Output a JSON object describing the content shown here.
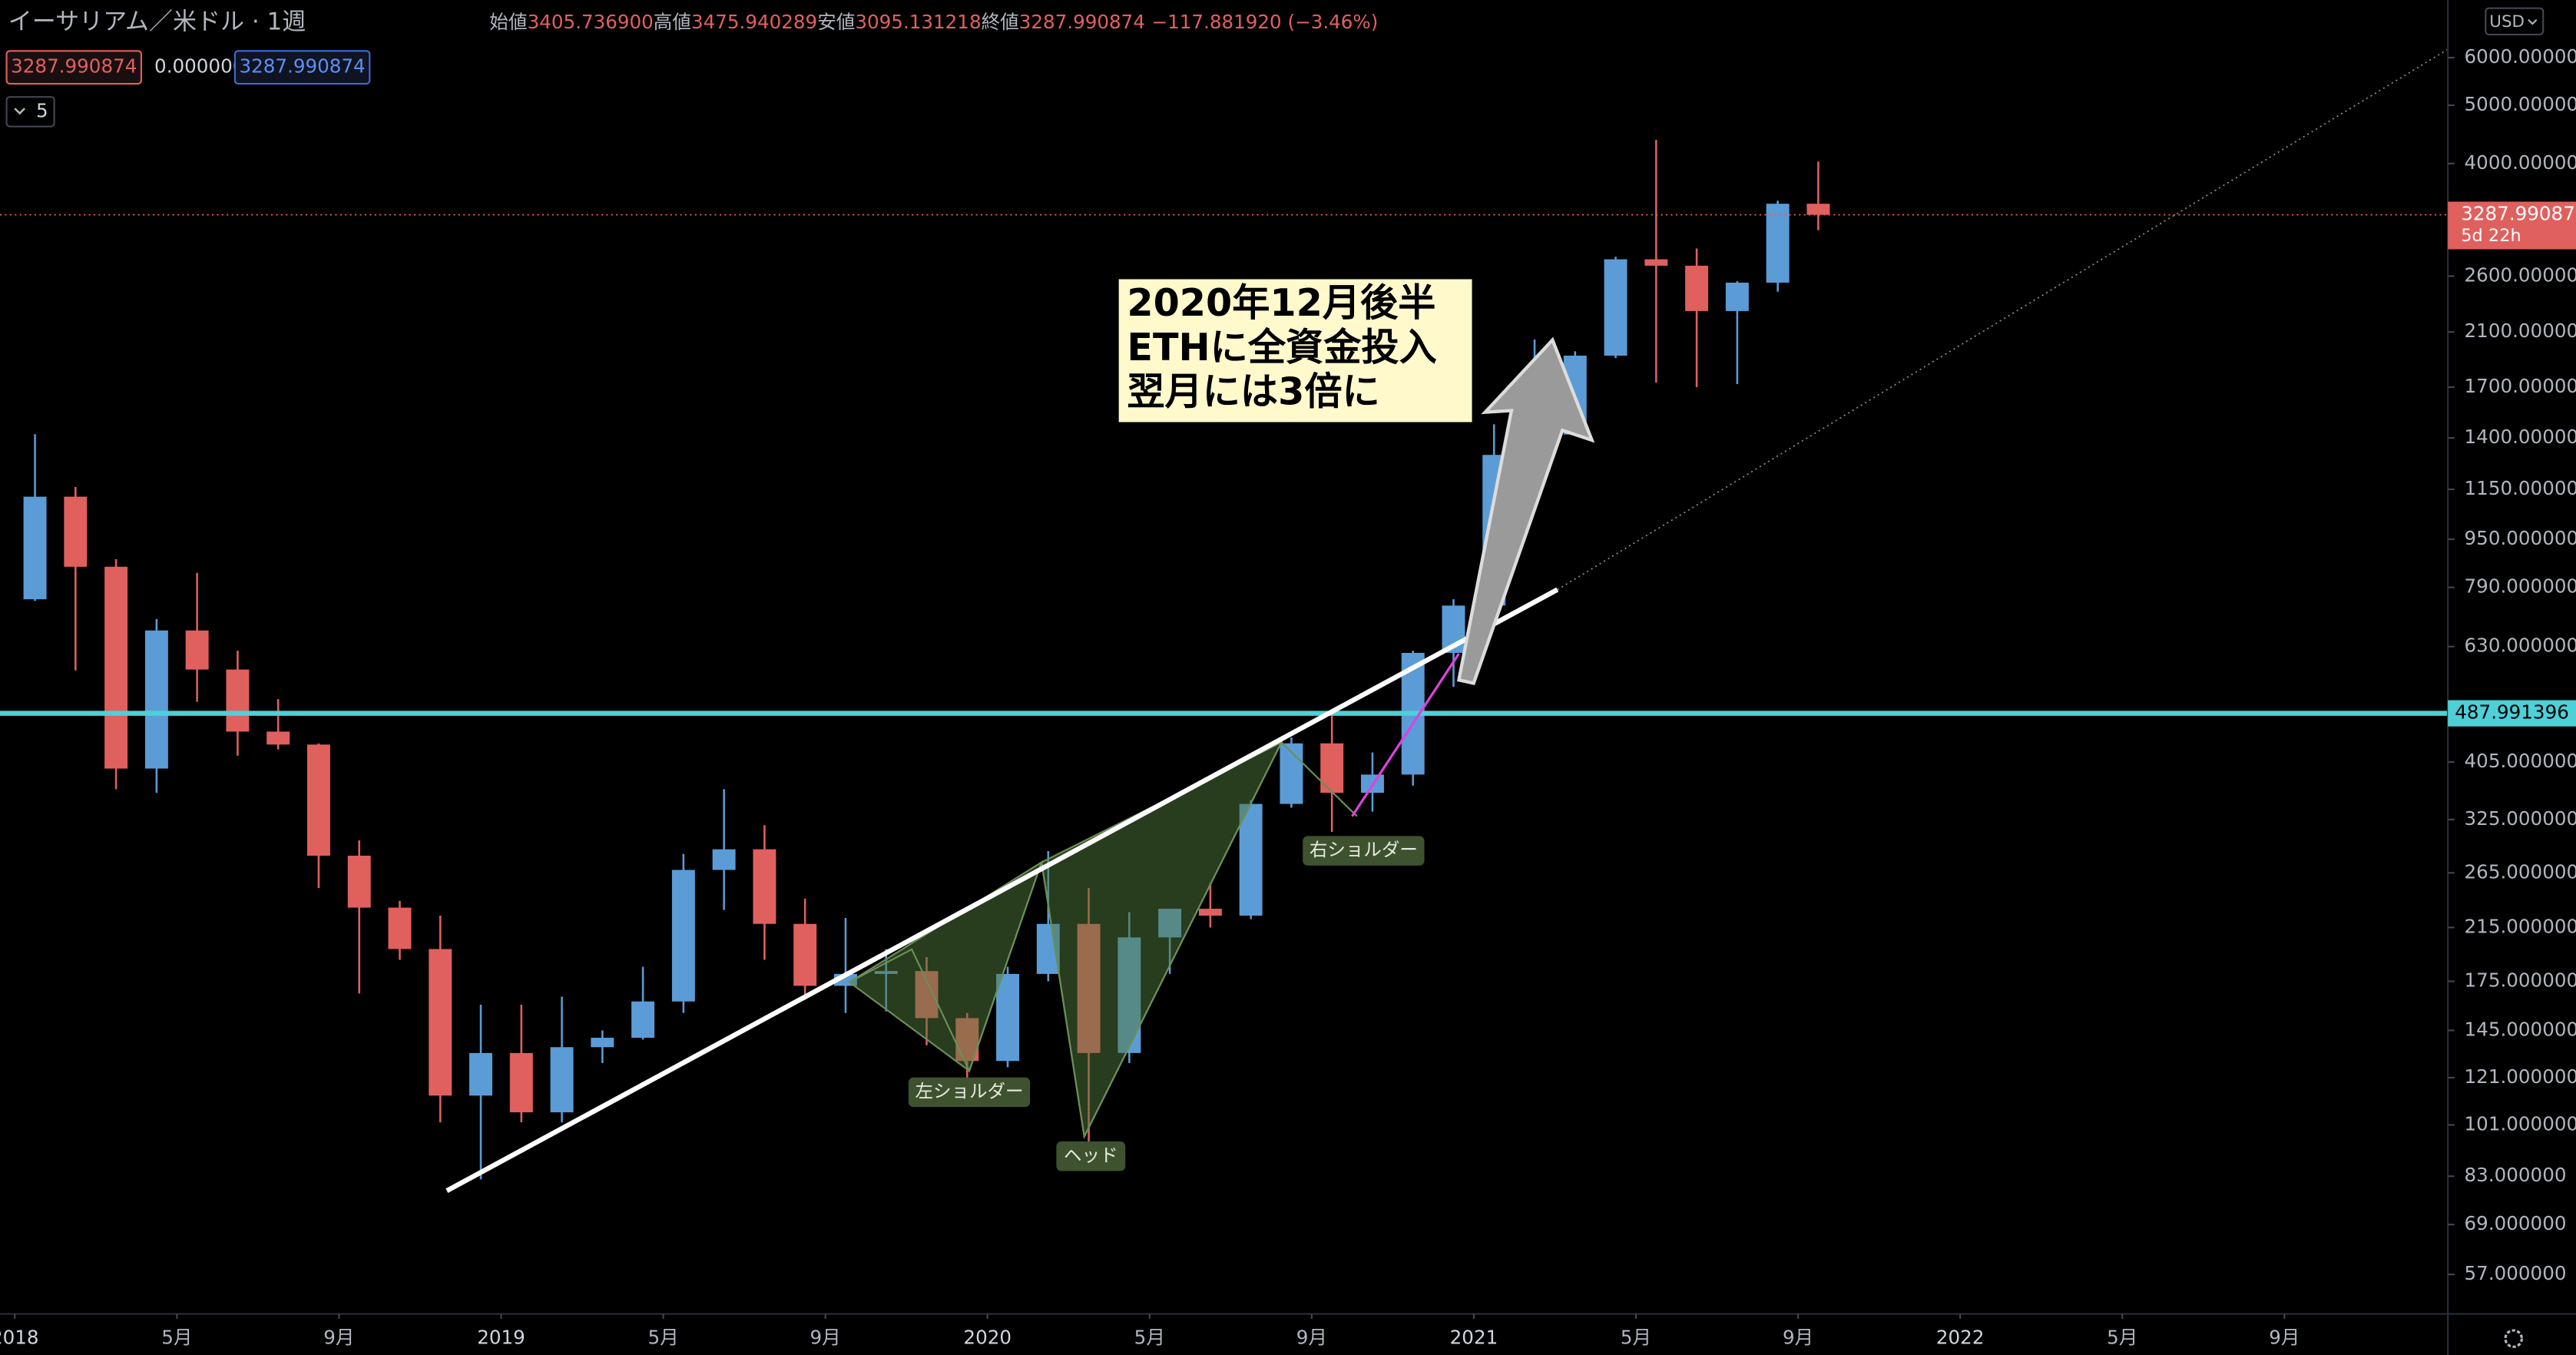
{
  "header": {
    "symbol": "イーサリアム／米ドル · 1週",
    "ohlc": [
      {
        "label": "始値",
        "value": "3405.736900"
      },
      {
        "label": "高値",
        "value": "3475.940289"
      },
      {
        "label": "安値",
        "value": "3095.131218"
      },
      {
        "label": "終値",
        "value": "3287.990874"
      }
    ],
    "change": "−117.881920 (−3.46%)"
  },
  "toolbar": {
    "price_boxes": [
      "3287.990874",
      "0.000000",
      "3287.990874"
    ],
    "indicator_count": "5",
    "currency": "USD"
  },
  "chart_data": {
    "type": "candlestick",
    "log_scale": true,
    "grid": false,
    "up_color": "#5b9cd6",
    "down_color": "#e0605e",
    "categories": [
      "2018-01",
      "2018-02",
      "2018-03",
      "2018-04",
      "2018-05",
      "2018-06",
      "2018-07",
      "2018-08",
      "2018-09",
      "2018-10",
      "2018-11",
      "2018-12",
      "2019-01",
      "2019-02",
      "2019-03",
      "2019-04",
      "2019-05",
      "2019-06",
      "2019-07",
      "2019-08",
      "2019-09",
      "2019-10",
      "2019-11",
      "2019-12",
      "2020-01",
      "2020-02",
      "2020-03",
      "2020-04",
      "2020-05",
      "2020-06",
      "2020-07",
      "2020-08",
      "2020-09",
      "2020-10",
      "2020-11",
      "2020-12",
      "2021-01",
      "2021-02",
      "2021-03",
      "2021-04",
      "2021-05",
      "2021-06",
      "2021-07",
      "2021-08",
      "2021-09"
    ],
    "open": [
      755,
      1118,
      855,
      395,
      670,
      577,
      455,
      433,
      283,
      232,
      198,
      113,
      133,
      106,
      136,
      141,
      162,
      268,
      290,
      218,
      172,
      180,
      182,
      152,
      129,
      180,
      218,
      133,
      207,
      231,
      225,
      345,
      435,
      360,
      386,
      615,
      737,
      1312,
      1418,
      1918,
      2773,
      2706,
      2275,
      2536,
      3430
    ],
    "high": [
      1420,
      1160,
      880,
      700,
      835,
      620,
      515,
      435,
      300,
      238,
      225,
      160,
      160,
      165,
      145,
      185,
      285,
      365,
      318,
      240,
      223,
      198,
      192,
      155,
      185,
      288,
      250,
      228,
      218,
      255,
      350,
      445,
      490,
      420,
      620,
      755,
      1475,
      2040,
      1950,
      2800,
      4380,
      2890,
      2550,
      3470,
      4030
    ],
    "low": [
      750,
      575,
      365,
      360,
      510,
      415,
      425,
      250,
      167,
      190,
      102,
      82,
      102,
      102,
      128,
      140,
      155,
      230,
      190,
      163,
      155,
      156,
      137,
      118,
      126,
      175,
      90,
      128,
      180,
      215,
      222,
      340,
      310,
      335,
      370,
      540,
      715,
      1290,
      1420,
      1900,
      1730,
      1700,
      1720,
      2450,
      3100
    ],
    "close": [
      1118,
      855,
      395,
      670,
      577,
      455,
      433,
      283,
      232,
      198,
      113,
      133,
      106,
      136,
      141,
      162,
      268,
      290,
      218,
      172,
      180,
      182,
      152,
      129,
      180,
      218,
      133,
      207,
      231,
      225,
      345,
      435,
      360,
      386,
      615,
      737,
      1312,
      1418,
      1918,
      2773,
      2706,
      2275,
      2536,
      3430,
      3287.990874
    ],
    "ylim": [
      49,
      7480
    ],
    "yticks": [
      {
        "value": 6000,
        "label": "6000.000000"
      },
      {
        "value": 5000,
        "label": "5000.000000"
      },
      {
        "value": 4000,
        "label": "4000.000000"
      },
      {
        "value": 2600,
        "label": "2600.000000"
      },
      {
        "value": 2100,
        "label": "2100.000000"
      },
      {
        "value": 1700,
        "label": "1700.000000"
      },
      {
        "value": 1400,
        "label": "1400.000000"
      },
      {
        "value": 1150,
        "label": "1150.000000"
      },
      {
        "value": 950,
        "label": "950.000000"
      },
      {
        "value": 790,
        "label": "790.000000"
      },
      {
        "value": 630,
        "label": "630.000000"
      },
      {
        "value": 405,
        "label": "405.000000"
      },
      {
        "value": 325,
        "label": "325.000000"
      },
      {
        "value": 265,
        "label": "265.000000"
      },
      {
        "value": 215,
        "label": "215.000000"
      },
      {
        "value": 175,
        "label": "175.000000"
      },
      {
        "value": 145,
        "label": "145.000000"
      },
      {
        "value": 121,
        "label": "121.000000"
      },
      {
        "value": 101,
        "label": "101.000000"
      },
      {
        "value": 83,
        "label": "83.000000"
      },
      {
        "value": 69,
        "label": "69.000000"
      },
      {
        "value": 57,
        "label": "57.000000"
      }
    ],
    "xticks": [
      {
        "value": "2018-01",
        "label": "2018"
      },
      {
        "value": "2018-05",
        "label": "5月"
      },
      {
        "value": "2018-09",
        "label": "9月"
      },
      {
        "value": "2019-01",
        "label": "2019"
      },
      {
        "value": "2019-05",
        "label": "5月"
      },
      {
        "value": "2019-09",
        "label": "9月"
      },
      {
        "value": "2020-01",
        "label": "2020"
      },
      {
        "value": "2020-05",
        "label": "5月"
      },
      {
        "value": "2020-09",
        "label": "9月"
      },
      {
        "value": "2021-01",
        "label": "2021"
      },
      {
        "value": "2021-05",
        "label": "5月"
      },
      {
        "value": "2021-09",
        "label": "9月"
      },
      {
        "value": "2022-01",
        "label": "2022"
      },
      {
        "value": "2022-05",
        "label": "5月"
      },
      {
        "value": "2022-09",
        "label": "9月"
      }
    ],
    "current_price": 3287.990874,
    "countdown": "5d 22h",
    "horizontal_line": {
      "value": 487.991396,
      "color": "#4dd0d8"
    },
    "annotations": {
      "note": [
        "2020年12月後半",
        "ETHに全資金投入",
        "翌月には3倍に"
      ],
      "patterns": [
        "左ショルダー",
        "ヘッド",
        "右ショルダー"
      ]
    }
  }
}
